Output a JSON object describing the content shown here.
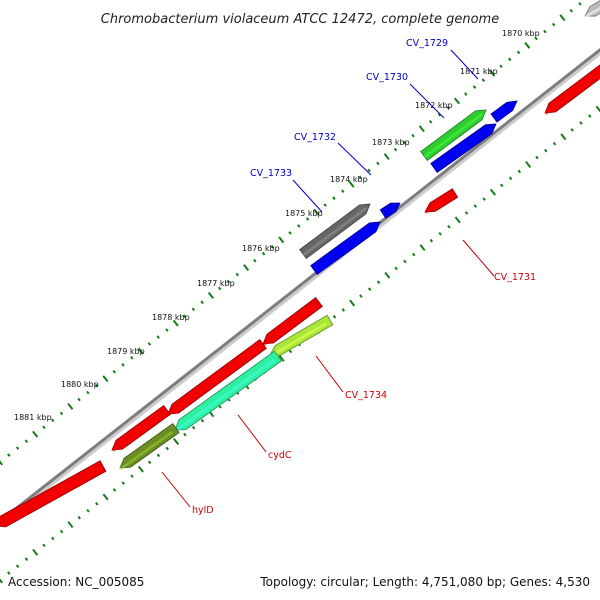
{
  "title": "Chromobacterium violaceum ATCC 12472, complete genome",
  "footer": {
    "accession": "Accession: NC_005085",
    "stats": "Topology: circular; Length: 4,751,080 bp; Genes: 4,530"
  },
  "colors": {
    "backbone": "#8a8a8a",
    "tick": "#1a7a1a",
    "forward_gene": "#0000ee",
    "reverse_gene": "#ee0000",
    "label_forward": "#0000cc",
    "label_reverse": "#cc0000"
  },
  "kbp_labels": [
    "1870 kbp",
    "1871 kbp",
    "1872 kbp",
    "1873 kbp",
    "1874 kbp",
    "1875 kbp",
    "1876 kbp",
    "1877 kbp",
    "1878 kbp",
    "1879 kbp",
    "1880 kbp",
    "1881 kbp"
  ],
  "genes": [
    {
      "label": "CV_1729",
      "color": "#2ecc2e",
      "strand": "forward"
    },
    {
      "label": "CV_1730",
      "color": "#0000ee",
      "strand": "forward"
    },
    {
      "label": "CV_1731",
      "color": "#ee0000",
      "strand": "reverse"
    },
    {
      "label": "CV_1732",
      "color": "#0000ee",
      "strand": "forward"
    },
    {
      "label": "CV_1733",
      "color": "#666666",
      "strand": "forward"
    },
    {
      "label": "CV_1734",
      "color": "#a6e83a",
      "strand": "reverse"
    },
    {
      "label": "cydC",
      "color": "#2ef0a0",
      "strand": "reverse"
    },
    {
      "label": "hylD",
      "color": "#6b8e23",
      "strand": "reverse"
    }
  ]
}
